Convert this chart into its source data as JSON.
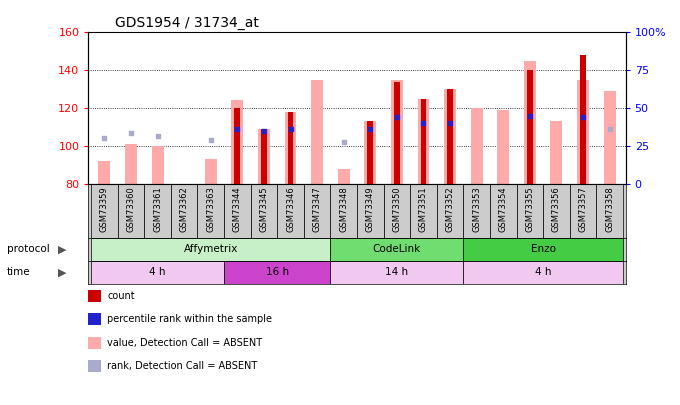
{
  "title": "GDS1954 / 31734_at",
  "samples": [
    "GSM73359",
    "GSM73360",
    "GSM73361",
    "GSM73362",
    "GSM73363",
    "GSM73344",
    "GSM73345",
    "GSM73346",
    "GSM73347",
    "GSM73348",
    "GSM73349",
    "GSM73350",
    "GSM73351",
    "GSM73352",
    "GSM73353",
    "GSM73354",
    "GSM73355",
    "GSM73356",
    "GSM73357",
    "GSM73358"
  ],
  "pink_top": [
    92,
    101,
    100,
    80,
    93,
    124,
    109,
    118,
    135,
    88,
    113,
    135,
    125,
    130,
    120,
    119,
    145,
    113,
    135,
    129
  ],
  "red_top": [
    0,
    0,
    0,
    0,
    0,
    120,
    109,
    118,
    0,
    0,
    113,
    134,
    125,
    130,
    0,
    0,
    140,
    0,
    148,
    0
  ],
  "blue_dot": [
    104,
    107,
    105,
    0,
    103,
    109,
    108,
    109,
    0,
    102,
    109,
    115,
    112,
    112,
    0,
    0,
    116,
    0,
    115,
    109
  ],
  "lightblue_dot": [
    104,
    107,
    105,
    0,
    103,
    0,
    0,
    0,
    0,
    102,
    0,
    0,
    0,
    0,
    0,
    0,
    0,
    0,
    0,
    109
  ],
  "ylim_left": [
    80,
    160
  ],
  "ylim_right": [
    0,
    100
  ],
  "yticks_left": [
    80,
    100,
    120,
    140,
    160
  ],
  "yticks_right": [
    0,
    25,
    50,
    75,
    100
  ],
  "ytick_labels_right": [
    "0",
    "25",
    "50",
    "75",
    "100%"
  ],
  "protocol_groups": [
    {
      "label": "Affymetrix",
      "start": 0,
      "end": 9,
      "color": "#c8f0c8"
    },
    {
      "label": "CodeLink",
      "start": 9,
      "end": 14,
      "color": "#70dd70"
    },
    {
      "label": "Enzo",
      "start": 14,
      "end": 20,
      "color": "#44cc44"
    }
  ],
  "time_groups": [
    {
      "label": "4 h",
      "start": 0,
      "end": 5,
      "color": "#f0c8f0"
    },
    {
      "label": "16 h",
      "start": 5,
      "end": 9,
      "color": "#cc44cc"
    },
    {
      "label": "14 h",
      "start": 9,
      "end": 14,
      "color": "#f0c8f0"
    },
    {
      "label": "4 h",
      "start": 14,
      "end": 20,
      "color": "#f0c8f0"
    }
  ],
  "baseline": 80,
  "bg_color": "#ffffff",
  "red_color": "#cc0000",
  "pink_color": "#ffaaaa",
  "blue_color": "#2222cc",
  "lightblue_color": "#aaaacc",
  "gray_color": "#cccccc"
}
